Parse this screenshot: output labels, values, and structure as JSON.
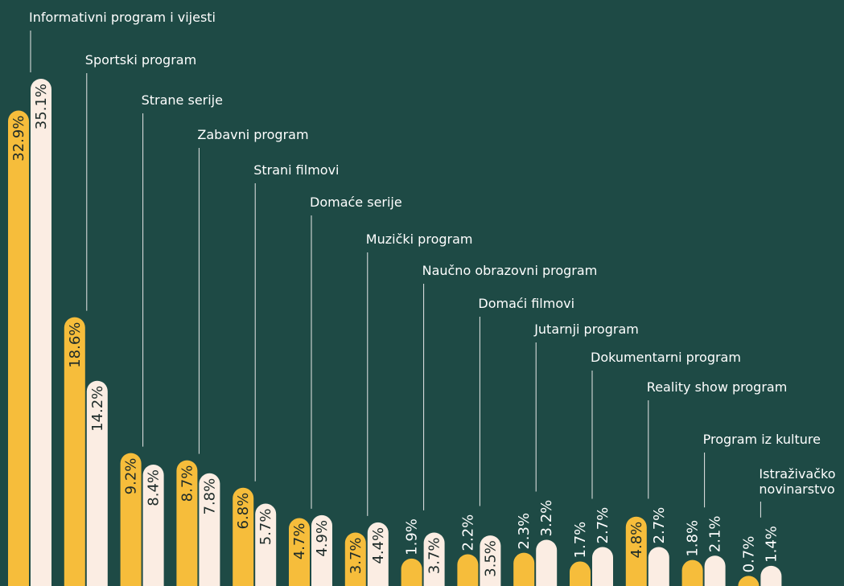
{
  "chart_data": {
    "type": "bar",
    "categories": [
      "Informativni program i vijesti",
      "Sportski program",
      "Strane serije",
      "Zabavni program",
      "Strani filmovi",
      "Domaće serije",
      "Muzički program",
      "Naučno obrazovni program",
      "Domaći filmovi",
      "Jutarnji program",
      "Dokumentarni program",
      "Reality show program",
      "Program iz kulture",
      "Istraživačko novinarstvo"
    ],
    "series": [
      {
        "color": "#f6bd3b",
        "values": [
          32.9,
          18.6,
          9.2,
          8.7,
          6.8,
          4.7,
          3.7,
          1.9,
          2.2,
          2.3,
          1.7,
          4.8,
          1.8,
          0.7
        ],
        "value_labels": [
          "32.9%",
          "18.6%",
          "9.2%",
          "8.7%",
          "6.8%",
          "4.7%",
          "3.7%",
          "1.9%",
          "2.2%",
          "2.3%",
          "1.7%",
          "4.8%",
          "1.8%",
          "0.7%"
        ]
      },
      {
        "color": "#fbede3",
        "values": [
          35.1,
          14.2,
          8.4,
          7.8,
          5.7,
          4.9,
          4.4,
          3.7,
          3.5,
          3.2,
          2.7,
          2.7,
          2.1,
          1.4
        ],
        "value_labels": [
          "35.1%",
          "14.2%",
          "8.4%",
          "7.8%",
          "5.7%",
          "4.9%",
          "4.4%",
          "3.7%",
          "3.5%",
          "3.2%",
          "2.7%",
          "2.7%",
          "2.1%",
          "1.4%"
        ]
      }
    ],
    "ylim": [
      0,
      36
    ]
  }
}
